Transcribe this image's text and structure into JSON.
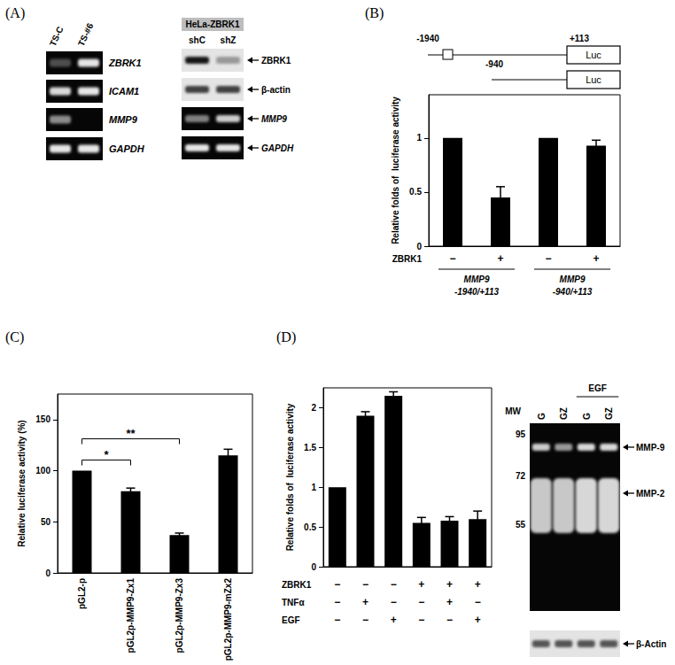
{
  "panel_labels": [
    "(A)",
    "(B)",
    "(C)",
    "(D)"
  ],
  "panel_a": {
    "gel_left": {
      "lanes": [
        "TS-C",
        "TS-#6"
      ],
      "rows": [
        "ZBRK1",
        "ICAM1",
        "MMP9",
        "GAPDH"
      ]
    },
    "gel_right": {
      "title": "HeLa-ZBRK1",
      "lanes": [
        "shC",
        "shZ"
      ],
      "rows": [
        "ZBRK1",
        "β-actin",
        "MMP9",
        "GAPDH"
      ]
    }
  },
  "panel_b_diagram": {
    "constructs": [
      {
        "start": "-1940",
        "end": "+113",
        "box": "Luc"
      },
      {
        "start": "-940",
        "box": "Luc"
      }
    ]
  },
  "panel_d_blot": {
    "mw_title": "MW",
    "mw_markers": [
      95,
      72,
      55
    ],
    "lanes": [
      "G",
      "GZ",
      "G",
      "GZ"
    ],
    "treatment": "EGF",
    "bands": [
      "MMP-9",
      "MMP-2"
    ],
    "loading": "β-Actin"
  },
  "chart_data": [
    {
      "type": "bar",
      "ylabel": "Relative folds of  luciferase activity",
      "categories": [
        null,
        null,
        null,
        null
      ],
      "values": [
        1,
        0.45,
        1,
        0.93
      ],
      "errors": [
        null,
        0.1,
        null,
        0.05
      ],
      "color": "#000000",
      "ylim": [
        0,
        1.4
      ],
      "yticks": [
        0,
        0.5,
        1
      ],
      "condition_rows": [
        {
          "label": "ZBRK1",
          "values": [
            "−",
            "+",
            "−",
            "+"
          ]
        }
      ],
      "groups": [
        {
          "label": "MMP9",
          "sublabel": "-1940/+113",
          "members": [
            0,
            1
          ]
        },
        {
          "label": "MMP9",
          "sublabel": "-940/+113",
          "members": [
            2,
            3
          ]
        }
      ]
    },
    {
      "type": "bar",
      "ylabel": "Relative luciferase activity (%)",
      "categories": [
        "pGL2-p",
        "pGL2p-MMP9-Zx1",
        "pGL2p-MMP9-Zx3",
        "pGL2p-MMP9-mZx2"
      ],
      "values": [
        100,
        80,
        37,
        115
      ],
      "errors": [
        null,
        3,
        2,
        6
      ],
      "color": "#000000",
      "ylim": [
        0,
        175
      ],
      "yticks": [
        0,
        50,
        100,
        150
      ],
      "significance": [
        {
          "from": 0,
          "to": 1,
          "label": "*"
        },
        {
          "from": 0,
          "to": 2,
          "label": "**"
        }
      ]
    },
    {
      "type": "bar",
      "ylabel": "Relative folds of  luciferase activity",
      "categories": [
        null,
        null,
        null,
        null,
        null,
        null
      ],
      "values": [
        1,
        1.9,
        2.15,
        0.55,
        0.58,
        0.6
      ],
      "errors": [
        null,
        0.05,
        0.05,
        0.07,
        0.05,
        0.1
      ],
      "color": "#000000",
      "ylim": [
        0,
        2.25
      ],
      "yticks": [
        0,
        0.5,
        1,
        1.5,
        2
      ],
      "condition_rows": [
        {
          "label": "ZBRK1",
          "values": [
            "−",
            "−",
            "−",
            "+",
            "+",
            "+"
          ]
        },
        {
          "label": "TNFα",
          "values": [
            "−",
            "+",
            "−",
            "−",
            "+",
            "−"
          ]
        },
        {
          "label": "EGF",
          "values": [
            "−",
            "−",
            "+",
            "−",
            "−",
            "+"
          ]
        }
      ]
    }
  ]
}
